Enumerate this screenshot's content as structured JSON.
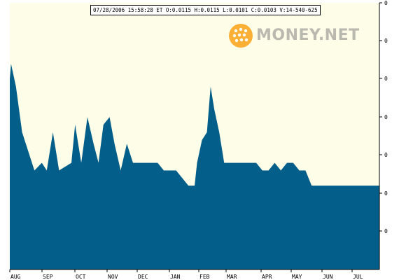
{
  "quote_info": "07/28/2006 15:58:28 ET  O:0.0115 H:0.0115 L:0.0101 C:0.0103 V:14-540-625",
  "logo_text": "MONEY.NET",
  "colors": {
    "plot_background": "#fdfde8",
    "area_fill": "#035e8a",
    "axis": "#000000",
    "logo_orange": "#fbb035",
    "logo_text": "#b9b9b0"
  },
  "chart_data": {
    "type": "area",
    "x_tick_labels": [
      "AUG",
      "SEP",
      "OCT",
      "NOV",
      "DEC",
      "JAN",
      "FEB",
      "MAR",
      "APR",
      "MAY",
      "JUN",
      "JUL"
    ],
    "y_tick_labels": [
      "0",
      "0",
      "0",
      "0",
      "0",
      "0",
      "0"
    ],
    "ylim": [
      0,
      7
    ],
    "grid": false,
    "series": [
      {
        "values": [
          [
            0,
            5
          ],
          [
            0.1,
            5.4
          ],
          [
            0.5,
            4.8
          ],
          [
            1,
            3.6
          ],
          [
            2,
            2.6
          ],
          [
            2.6,
            2.8
          ],
          [
            3,
            2.6
          ],
          [
            3.5,
            3.6
          ],
          [
            4,
            2.6
          ],
          [
            5,
            2.8
          ],
          [
            5.3,
            3.8
          ],
          [
            5.8,
            2.8
          ],
          [
            6.3,
            4
          ],
          [
            6.8,
            3.3
          ],
          [
            7.2,
            2.8
          ],
          [
            7.6,
            3.8
          ],
          [
            8.1,
            4
          ],
          [
            8.5,
            3.3
          ],
          [
            9,
            2.6
          ],
          [
            9.5,
            3.3
          ],
          [
            10,
            2.8
          ],
          [
            10.5,
            2.8
          ],
          [
            11,
            2.8
          ],
          [
            11.5,
            2.8
          ],
          [
            12,
            2.8
          ],
          [
            12.5,
            2.6
          ],
          [
            13,
            2.6
          ],
          [
            13.5,
            2.6
          ],
          [
            14,
            2.4
          ],
          [
            14.5,
            2.2
          ],
          [
            15,
            2.2
          ],
          [
            15.2,
            2.8
          ],
          [
            15.6,
            3.4
          ],
          [
            16,
            3.6
          ],
          [
            16.3,
            4.8
          ],
          [
            16.6,
            4.2
          ],
          [
            17,
            3.6
          ],
          [
            17.4,
            2.8
          ],
          [
            18,
            2.8
          ],
          [
            18.5,
            2.8
          ],
          [
            19,
            2.8
          ],
          [
            19.5,
            2.8
          ],
          [
            20,
            2.8
          ],
          [
            20.5,
            2.6
          ],
          [
            21,
            2.6
          ],
          [
            21.5,
            2.8
          ],
          [
            22,
            2.6
          ],
          [
            22.5,
            2.8
          ],
          [
            23,
            2.8
          ],
          [
            23.5,
            2.6
          ],
          [
            24,
            2.6
          ],
          [
            24.5,
            2.2
          ],
          [
            25,
            2.2
          ],
          [
            25.5,
            2.2
          ],
          [
            26,
            2.2
          ],
          [
            26.5,
            2.2
          ],
          [
            27,
            2.2
          ],
          [
            27.5,
            2.2
          ],
          [
            28,
            2.2
          ],
          [
            28.5,
            2.2
          ],
          [
            29,
            2.2
          ],
          [
            29.5,
            2.2
          ],
          [
            30,
            2.2
          ]
        ],
        "xmax": 30
      }
    ]
  }
}
